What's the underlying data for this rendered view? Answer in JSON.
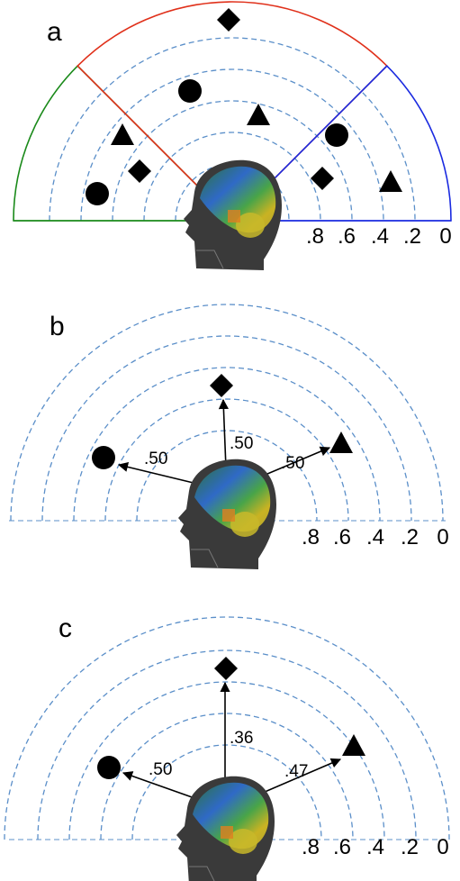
{
  "panels": [
    {
      "label": "a",
      "ticks": [
        ".8",
        ".6",
        ".4",
        ".2",
        "0"
      ]
    },
    {
      "label": "b",
      "ticks": [
        ".8",
        ".6",
        ".4",
        ".2",
        "0"
      ],
      "arrows": [
        ".50",
        ".50",
        ".50"
      ]
    },
    {
      "label": "c",
      "ticks": [
        ".8",
        ".6",
        ".4",
        ".2",
        "0"
      ],
      "arrows": [
        ".50",
        ".36",
        ".47"
      ]
    }
  ]
}
